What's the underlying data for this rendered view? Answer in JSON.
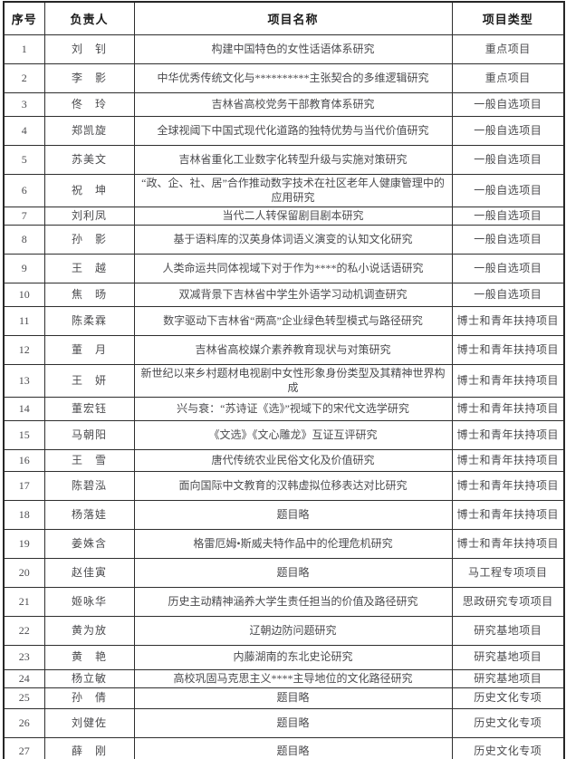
{
  "colors": {
    "background": "#ffffff",
    "border": "#2e2e2e",
    "header_text": "#1c1c1c",
    "body_text": "#4b4b4e"
  },
  "table": {
    "columns": [
      {
        "key": "num",
        "label": "序号"
      },
      {
        "key": "name",
        "label": "负责人"
      },
      {
        "key": "title",
        "label": "项目名称"
      },
      {
        "key": "category",
        "label": "项目类型"
      }
    ],
    "rows": [
      {
        "num": "1",
        "name": "刘　钊",
        "title": "构建中国特色的女性话语体系研究",
        "category": "重点项目"
      },
      {
        "num": "2",
        "name": "李　影",
        "title": "中华优秀传统文化与**********主张契合的多维逻辑研究",
        "category": "重点项目"
      },
      {
        "num": "3",
        "name": "佟　玲",
        "title": "吉林省高校党务干部教育体系研究",
        "category": "一般自选项目"
      },
      {
        "num": "4",
        "name": "郑凯旋",
        "title": "全球视阈下中国式现代化道路的独特优势与当代价值研究",
        "category": "一般自选项目"
      },
      {
        "num": "5",
        "name": "苏美文",
        "title": "吉林省重化工业数字化转型升级与实施对策研究",
        "category": "一般自选项目"
      },
      {
        "num": "6",
        "name": "祝　坤",
        "title": "“政、企、社、居”合作推动数字技术在社区老年人健康管理中的应用研究",
        "category": "一般自选项目"
      },
      {
        "num": "7",
        "name": "刘利凤",
        "title": "当代二人转保留剧目剧本研究",
        "category": "一般自选项目"
      },
      {
        "num": "8",
        "name": "孙　影",
        "title": "基于语料库的汉英身体词语义演变的认知文化研究",
        "category": "一般自选项目"
      },
      {
        "num": "9",
        "name": "王　越",
        "title": "人类命运共同体视域下对于作为****的私小说话语研究",
        "category": "一般自选项目"
      },
      {
        "num": "10",
        "name": "焦　旸",
        "title": "双减背景下吉林省中学生外语学习动机调查研究",
        "category": "一般自选项目"
      },
      {
        "num": "11",
        "name": "陈柔霖",
        "title": "数字驱动下吉林省“两高”企业绿色转型模式与路径研究",
        "category": "博士和青年扶持项目"
      },
      {
        "num": "12",
        "name": "董　月",
        "title": "吉林省高校媒介素养教育现状与对策研究",
        "category": "博士和青年扶持项目"
      },
      {
        "num": "13",
        "name": "王　妍",
        "title": "新世纪以来乡村题材电视剧中女性形象身份类型及其精神世界构成",
        "category": "博士和青年扶持项目"
      },
      {
        "num": "14",
        "name": "董宏钰",
        "title": "兴与衰：“苏诗证《选》”视域下的宋代文选学研究",
        "category": "博士和青年扶持项目"
      },
      {
        "num": "15",
        "name": "马朝阳",
        "title": "《文选》《文心雕龙》互证互评研究",
        "category": "博士和青年扶持项目"
      },
      {
        "num": "16",
        "name": "王　雪",
        "title": "唐代传统农业民俗文化及价值研究",
        "category": "博士和青年扶持项目"
      },
      {
        "num": "17",
        "name": "陈碧泓",
        "title": "面向国际中文教育的汉韩虚拟位移表达对比研究",
        "category": "博士和青年扶持项目"
      },
      {
        "num": "18",
        "name": "杨落娃",
        "title": "题目略",
        "category": "博士和青年扶持项目"
      },
      {
        "num": "19",
        "name": "姜姝含",
        "title": "格雷厄姆•斯威夫特作品中的伦理危机研究",
        "category": "博士和青年扶持项目"
      },
      {
        "num": "20",
        "name": "赵佳寅",
        "title": "题目略",
        "category": "马工程专项项目"
      },
      {
        "num": "21",
        "name": "姬咏华",
        "title": "历史主动精神涵养大学生责任担当的价值及路径研究",
        "category": "思政研究专项项目"
      },
      {
        "num": "22",
        "name": "黄为放",
        "title": "辽朝边防问题研究",
        "category": "研究基地项目"
      },
      {
        "num": "23",
        "name": "黄　艳",
        "title": "内藤湖南的东北史论研究",
        "category": "研究基地项目"
      },
      {
        "num": "24",
        "name": "杨立敏",
        "title": "高校巩固马克思主义****主导地位的文化路径研究",
        "category": "研究基地项目"
      },
      {
        "num": "25",
        "name": "孙　倩",
        "title": "题目略",
        "category": "历史文化专项"
      },
      {
        "num": "26",
        "name": "刘健佐",
        "title": "题目略",
        "category": "历史文化专项"
      },
      {
        "num": "27",
        "name": "薛　刚",
        "title": "题目略",
        "category": "历史文化专项"
      }
    ]
  }
}
